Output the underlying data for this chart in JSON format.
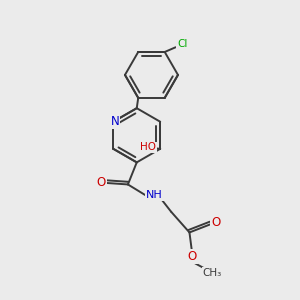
{
  "bg_color": "#ebebeb",
  "bond_color": "#3a3a3a",
  "bond_width": 1.4,
  "atom_colors": {
    "C": "#3a3a3a",
    "N": "#0000cc",
    "O": "#cc0000",
    "Cl": "#00aa00",
    "H": "#3a3a3a"
  },
  "figsize": [
    3.0,
    3.0
  ],
  "dpi": 100,
  "xlim": [
    0,
    10
  ],
  "ylim": [
    0,
    10
  ]
}
